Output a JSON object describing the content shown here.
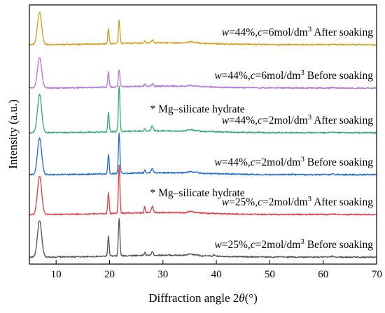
{
  "chart_data": {
    "type": "line",
    "title": "",
    "xlabel_prefix": "Diffraction angle 2",
    "xlabel_symbol": "θ",
    "xlabel_unit": "(°)",
    "ylabel": "Intensity (a.u.)",
    "xlim": [
      5,
      70
    ],
    "xticks": [
      10,
      20,
      30,
      40,
      50,
      60,
      70
    ],
    "grid": false,
    "legend": "none",
    "annotations": [
      {
        "text": "* Mg–silicate hydrate",
        "x": 28,
        "series": "w=44%,c=2mol/dm3 After soaking"
      },
      {
        "text": "* Mg–silicate hydrate",
        "x": 28,
        "series": "w=25%,c=2mol/dm3 After soaking"
      }
    ],
    "peaks": [
      {
        "x": 6.9,
        "w": 0.55,
        "h": 1.0
      },
      {
        "x": 19.8,
        "w": 0.18,
        "h": 0.72
      },
      {
        "x": 21.8,
        "w": 0.2,
        "h": 1.0
      },
      {
        "x": 26.6,
        "w": 0.15,
        "h": 0.28
      },
      {
        "x": 28.0,
        "w": 0.25,
        "h": 0.3
      },
      {
        "x": 35.2,
        "w": 0.7,
        "h": 0.2
      },
      {
        "x": 36.4,
        "w": 0.4,
        "h": 0.14
      },
      {
        "x": 39.5,
        "w": 0.2,
        "h": 0.12
      },
      {
        "x": 54.0,
        "w": 0.5,
        "h": 0.06
      },
      {
        "x": 61.8,
        "w": 0.35,
        "h": 0.14
      }
    ],
    "series": [
      {
        "label_parts": [
          "w",
          "=25%,",
          "c",
          "=2mol/dm",
          "3",
          " Before soaking"
        ],
        "color": "#505050",
        "scale": [
          0.95,
          0.72,
          0.97,
          0.3,
          0.3,
          0.18,
          0.16,
          0.25,
          0.06,
          0.16
        ]
      },
      {
        "label_parts": [
          "w",
          "=25%,",
          "c",
          "=2mol/dm",
          "3",
          " After soaking"
        ],
        "color": "#e8383d",
        "scale": [
          1.0,
          0.78,
          1.25,
          0.6,
          0.55,
          0.22,
          0.14,
          0.06,
          0.05,
          0.18
        ]
      },
      {
        "label_parts": [
          "w",
          "=44%,",
          "c",
          "=2mol/dm",
          "3",
          " Before soaking"
        ],
        "color": "#1f66d6",
        "scale": [
          0.95,
          0.68,
          1.05,
          0.28,
          0.4,
          0.22,
          0.15,
          0.1,
          0.05,
          0.14
        ]
      },
      {
        "label_parts": [
          "w",
          "=44%,",
          "c",
          "=2mol/dm",
          "3",
          " After soaking"
        ],
        "color": "#2eac6a",
        "scale": [
          1.0,
          0.72,
          1.2,
          0.2,
          0.42,
          0.2,
          0.14,
          0.06,
          0.05,
          0.12
        ]
      },
      {
        "label_parts": [
          "w",
          "=44%,",
          "c",
          "=6mol/dm",
          "3",
          " Before soaking"
        ],
        "color": "#b66fe0",
        "scale": [
          0.8,
          0.55,
          0.45,
          0.2,
          0.2,
          0.14,
          0.1,
          0.05,
          0.04,
          0.1
        ]
      },
      {
        "label_parts": [
          "w",
          "=44%,",
          "c",
          "=6mol/dm",
          "3",
          " After soaking"
        ],
        "color": "#d49a12",
        "scale": [
          0.85,
          0.55,
          0.6,
          0.2,
          0.22,
          0.18,
          0.12,
          0.05,
          0.05,
          0.12
        ]
      }
    ]
  }
}
